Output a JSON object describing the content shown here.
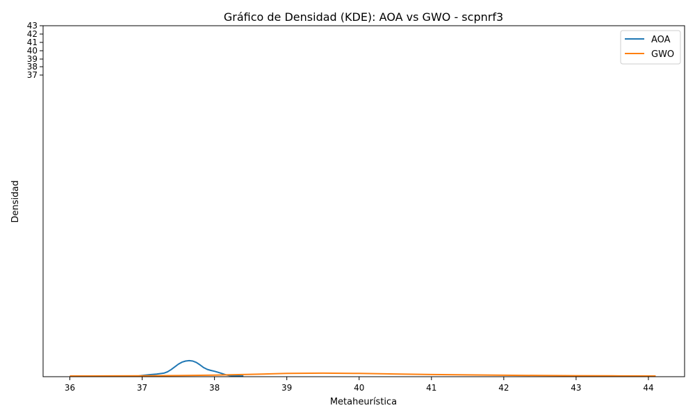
{
  "chart_data": {
    "type": "line",
    "title": "Gráfico de Densidad (KDE): AOA vs GWO - scpnrf3",
    "xlabel": "Metaheurística",
    "ylabel": "Densidad",
    "xlim": [
      35.63,
      44.5
    ],
    "xticks": [
      36,
      37,
      38,
      39,
      40,
      41,
      42,
      43,
      44
    ],
    "ytick_labels": [
      "37",
      "38",
      "39",
      "40",
      "41",
      "42",
      "43"
    ],
    "legend_position": "upper right",
    "grid": false,
    "series": [
      {
        "name": "AOA",
        "color": "#1f77b4",
        "x": [
          36.95,
          37.0,
          37.1,
          37.2,
          37.3,
          37.35,
          37.4,
          37.45,
          37.5,
          37.55,
          37.6,
          37.65,
          37.7,
          37.75,
          37.8,
          37.85,
          37.9,
          37.95,
          38.0,
          38.05,
          38.1,
          38.15,
          38.2,
          38.25,
          38.3,
          38.35,
          38.4
        ],
        "y": [
          0.0,
          0.08,
          0.2,
          0.28,
          0.42,
          0.62,
          0.95,
          1.35,
          1.75,
          2.05,
          2.22,
          2.28,
          2.22,
          2.0,
          1.65,
          1.25,
          0.98,
          0.82,
          0.7,
          0.55,
          0.38,
          0.2,
          0.08,
          0.04,
          0.02,
          0.01,
          0.0
        ]
      },
      {
        "name": "GWO",
        "color": "#ff7f0e",
        "x": [
          36.0,
          36.5,
          37.0,
          37.5,
          38.0,
          38.5,
          39.0,
          39.5,
          40.0,
          40.5,
          41.0,
          41.5,
          42.0,
          42.5,
          43.0,
          43.5,
          44.1
        ],
        "y": [
          0.0,
          0.01,
          0.03,
          0.06,
          0.12,
          0.25,
          0.38,
          0.42,
          0.38,
          0.3,
          0.22,
          0.16,
          0.11,
          0.07,
          0.04,
          0.02,
          0.0
        ]
      }
    ]
  }
}
